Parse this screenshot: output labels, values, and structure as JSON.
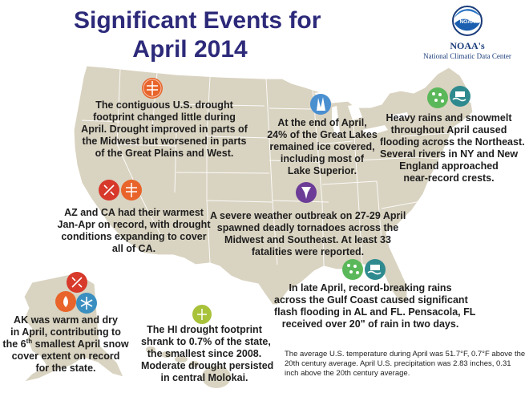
{
  "title": {
    "line1": "Significant Events for",
    "line2": "April 2014"
  },
  "logo": {
    "name": "NOAA's",
    "center": "National Climatic Data Center",
    "emblem_text": "NOAA"
  },
  "events": {
    "drought": {
      "lines": [
        "The contiguous U.S. drought",
        "footprint changed little during",
        "April. Drought improved in parts of",
        "the Midwest but worsened in parts",
        "of the Great Plains and West."
      ],
      "icons": [
        "drought-icon"
      ]
    },
    "great_lakes": {
      "lines": [
        "At the end of April,",
        "24% of the Great Lakes",
        "remained ice covered,",
        "including most of",
        "Lake Superior."
      ],
      "icons": [
        "ice-cover-icon"
      ]
    },
    "northeast": {
      "lines": [
        "Heavy rains and snowmelt",
        "throughout April caused",
        "flooding across the Northeast.",
        "Several rivers in NY and New",
        "England approached",
        "near-record crests."
      ],
      "icons": [
        "heavy-rain-icon",
        "flooding-icon"
      ]
    },
    "az_ca": {
      "lines": [
        "AZ and CA had their warmest",
        "Jan-Apr on record, with drought",
        "conditions expanding to cover",
        "all of CA."
      ],
      "icons": [
        "warmth-icon",
        "drought-icon"
      ]
    },
    "tornado": {
      "lines": [
        "A severe weather outbreak on 27-29 April",
        "spawned deadly tornadoes across the",
        "Midwest and Southeast. At least 33",
        "fatalities were reported."
      ],
      "icons": [
        "tornado-icon"
      ]
    },
    "gulf": {
      "lines": [
        "In late April, record-breaking rains",
        "across the Gulf Coast caused significant",
        "flash flooding in AL and FL. Pensacola, FL",
        "received over 20\" of rain in two days."
      ],
      "icons": [
        "heavy-rain-icon",
        "flooding-icon"
      ]
    },
    "alaska": {
      "line1": "AK was warm and dry",
      "line2": "in April, contributing to",
      "line3_pre": "the 6",
      "line3_sup": "th",
      "line3_post": " smallest April snow",
      "line4": "cover extent on record",
      "line5": "for the state.",
      "icons": [
        "warmth-icon",
        "dryness-icon",
        "snow-cover-icon"
      ]
    },
    "hawaii": {
      "lines": [
        "The HI drought footprint",
        "shrank to 0.7% of the state,",
        "the smallest since 2008.",
        "Moderate drought persisted",
        "in central Molokai."
      ],
      "icons": [
        "drought-icon"
      ]
    }
  },
  "footnote": {
    "lines": [
      "The average U.S. temperature during April was 51.7°F, 0.7°F above the",
      "20th century average. April U.S. precipitation was 2.83 inches, 0.31",
      "inch above the 20th century average."
    ]
  },
  "colors": {
    "land": "#d9d3c1",
    "state_border": "#ffffff",
    "title": "#2d2a7a",
    "drought": "#e8642a",
    "warmth": "#d7392b",
    "rain": "#5bb85a",
    "flood": "#2e8a8e",
    "ice": "#4a8fd0",
    "tornado": "#6c3c97",
    "snow": "#3a8fc0"
  }
}
